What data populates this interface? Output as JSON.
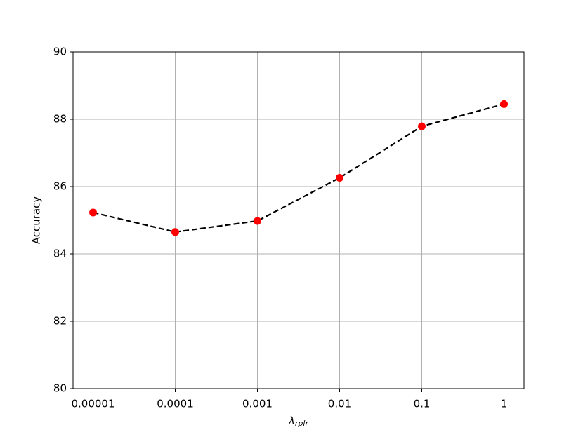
{
  "chart_data": {
    "type": "line",
    "x_label": "λ",
    "x_label_subscript": "rplr",
    "y_label": "Accuracy",
    "categories": [
      "0.00001",
      "0.0001",
      "0.001",
      "0.01",
      "0.1",
      "1"
    ],
    "values": [
      85.23,
      84.65,
      84.98,
      86.26,
      87.79,
      88.45
    ],
    "line_color": "#000000",
    "marker_color": "#ff0000",
    "line_style": "dashed",
    "ylim": [
      80,
      90
    ],
    "yticks": [
      80,
      82,
      84,
      86,
      88,
      90
    ],
    "grid": true
  }
}
